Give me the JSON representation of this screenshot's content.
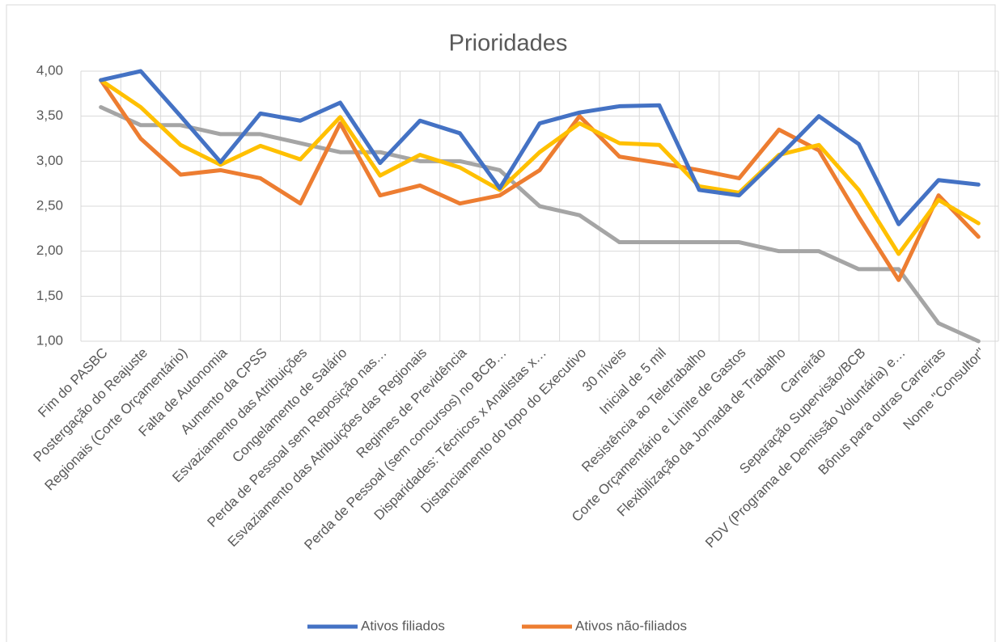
{
  "chart_data": {
    "type": "line",
    "title": "Prioridades",
    "categories": [
      "Fim do PASBC",
      "Postergação do  Reajuste",
      "Regionais (Corte Orçamentário)",
      "Falta de Autonomia",
      "Aumento da CPSS",
      "Esvaziamento das Atribuições",
      "Congelamento de Salário",
      "Perda de Pessoal sem Reposição nas…",
      "Esvaziamento das Atribuições das Regionais",
      "Regimes de Previdência",
      "Perda de Pessoal (sem concursos) no BCB…",
      "Disparidades: Técnicos x Analistas x…",
      "Distanciamento do topo do Executivo",
      "30 níveis",
      "Inicial de 5 mil",
      "Resistência ao Teletrabalho",
      "Corte Orçamentário e Limite de Gastos",
      "Flexibilização da Jornada de Trabalho",
      "Carreirão",
      "Separação Supervisão/BCB",
      "PDV (Programa de Demissão Voluntária) e…",
      "Bônus para outras Carreiras",
      "Nome \"Consultor\""
    ],
    "series": [
      {
        "name": "Ativos filiados",
        "color": "#4472c4",
        "values": [
          3.9,
          4.0,
          3.5,
          2.99,
          3.53,
          3.45,
          3.65,
          2.98,
          3.45,
          3.31,
          2.7,
          3.42,
          3.54,
          3.61,
          3.62,
          2.68,
          2.62,
          3.05,
          3.5,
          3.19,
          2.3,
          2.79,
          2.74
        ]
      },
      {
        "name": "Ativos não-filiados",
        "color": "#ed7d31",
        "values": [
          3.9,
          3.25,
          2.85,
          2.9,
          2.81,
          2.53,
          3.42,
          2.62,
          2.73,
          2.53,
          2.62,
          2.9,
          3.5,
          3.05,
          2.98,
          2.9,
          2.81,
          3.35,
          3.12,
          2.38,
          1.68,
          2.62,
          2.16
        ]
      },
      {
        "color": "#a5a5a5",
        "values": [
          3.6,
          3.4,
          3.4,
          3.3,
          3.3,
          3.2,
          3.1,
          3.1,
          3.0,
          3.0,
          2.9,
          2.5,
          2.4,
          2.1,
          2.1,
          2.1,
          2.1,
          2.0,
          2.0,
          1.8,
          1.8,
          1.2,
          1.0
        ]
      },
      {
        "color": "#ffc000",
        "values": [
          3.9,
          3.6,
          3.18,
          2.96,
          3.17,
          3.02,
          3.49,
          2.84,
          3.07,
          2.93,
          2.68,
          3.1,
          3.42,
          3.2,
          3.18,
          2.72,
          2.65,
          3.07,
          3.18,
          2.68,
          1.97,
          2.57,
          2.31
        ]
      }
    ],
    "ylim": [
      1,
      4
    ],
    "yticks": [
      {
        "value": 1,
        "label": "1,00"
      },
      {
        "value": 1.5,
        "label": "1,50"
      },
      {
        "value": 2,
        "label": "2,00"
      },
      {
        "value": 2.5,
        "label": "2,50"
      },
      {
        "value": 3,
        "label": "3,00"
      },
      {
        "value": 3.5,
        "label": "3,50"
      },
      {
        "value": 4,
        "label": "4,00"
      }
    ],
    "grid": true,
    "legend": "bottom"
  }
}
